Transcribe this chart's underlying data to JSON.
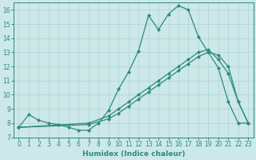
{
  "xlabel": "Humidex (Indice chaleur)",
  "background_color": "#cce8e8",
  "grid_color": "#b8d8d8",
  "line_color": "#2e8b7a",
  "xlim": [
    -0.5,
    23.5
  ],
  "ylim": [
    7,
    16.5
  ],
  "xticks": [
    0,
    1,
    2,
    3,
    4,
    5,
    6,
    7,
    8,
    9,
    10,
    11,
    12,
    13,
    14,
    15,
    16,
    17,
    18,
    19,
    20,
    21,
    22,
    23
  ],
  "yticks": [
    7,
    8,
    9,
    10,
    11,
    12,
    13,
    14,
    15,
    16
  ],
  "series1_x": [
    0,
    1,
    2,
    3,
    4,
    5,
    6,
    7,
    8,
    9,
    10,
    11,
    12,
    13,
    14,
    15,
    16,
    17,
    18,
    19,
    20,
    21,
    22,
    23
  ],
  "series1_y": [
    7.7,
    8.6,
    8.2,
    8.0,
    7.9,
    7.7,
    7.5,
    7.5,
    8.0,
    8.9,
    10.4,
    11.6,
    13.1,
    15.6,
    14.6,
    15.7,
    16.3,
    16.0,
    14.1,
    13.0,
    11.9,
    9.5,
    8.0,
    8.0
  ],
  "series2_x": [
    0,
    7,
    9,
    10,
    11,
    12,
    13,
    14,
    15,
    16,
    17,
    18,
    19,
    20,
    21,
    22,
    23
  ],
  "series2_y": [
    7.7,
    8.0,
    8.5,
    9.0,
    9.5,
    10.0,
    10.5,
    11.0,
    11.5,
    12.0,
    12.5,
    13.0,
    13.2,
    12.5,
    11.5,
    9.5,
    8.0
  ],
  "series3_x": [
    0,
    7,
    9,
    10,
    11,
    12,
    13,
    14,
    15,
    16,
    17,
    18,
    19,
    20,
    21,
    22,
    23
  ],
  "series3_y": [
    7.7,
    7.9,
    8.3,
    8.7,
    9.2,
    9.7,
    10.2,
    10.7,
    11.2,
    11.7,
    12.2,
    12.7,
    13.0,
    12.8,
    12.0,
    9.5,
    8.0
  ]
}
